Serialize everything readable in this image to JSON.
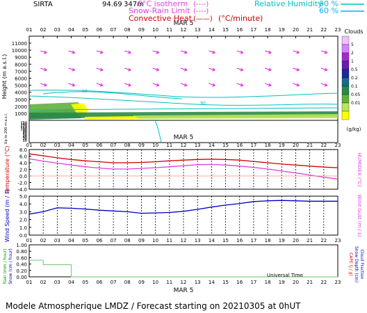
{
  "header": {
    "station": "SIRTA",
    "coords": "94.69",
    "alt": "347m",
    "legend": [
      {
        "label": "0°C isotherm",
        "sym": "(----)",
        "color": "#e040e0"
      },
      {
        "label": "Snow-Rain Limit",
        "sym": "(----)",
        "color": "#e040e0"
      },
      {
        "label": "Convective Heat.",
        "sym": "(——)",
        "color": "#d00000"
      },
      {
        "label": "(°C/minute)",
        "sym": "",
        "color": "#d00000"
      }
    ],
    "rh_label": "Relative Humidity",
    "rh_90": "90 %",
    "rh_60": "60 %",
    "rh_colors": {
      "rh90": "#00c0c0",
      "rh60": "#00b0ff"
    }
  },
  "hours": [
    "01",
    "02",
    "03",
    "04",
    "05",
    "06",
    "07",
    "08",
    "09",
    "10",
    "11",
    "12",
    "13",
    "14",
    "15",
    "16",
    "17",
    "18",
    "19",
    "20",
    "21",
    "22",
    "23"
  ],
  "date_label": "MAR  5",
  "footer": "Modele Atmospherique LMDZ / Forecast starting on 20210305 at 0hUT",
  "universal_time": "Universal Time",
  "chart_data": [
    {
      "type": "heatmap",
      "title": "",
      "ylabel": "Height  (m a.s.l.)",
      "ylabel2": "Up to 200 m a.s.l.",
      "yticks_upper": [
        "11000",
        "10000",
        "9000",
        "8000",
        "7000",
        "6000",
        "5000",
        "4000",
        "3000",
        "2000",
        "1000"
      ],
      "yticks_lower": [
        "150",
        "140",
        "130",
        "120",
        "110",
        "100",
        "90",
        "80",
        "70",
        "60",
        "50",
        "40",
        "30",
        "20",
        "10"
      ],
      "colorbar_title": "Clouds",
      "colorbar_unit": "(g/kg)",
      "colorbar_levels": [
        "0.01",
        "0.05",
        "0.1",
        "0.2",
        "0.5",
        "1",
        "2",
        "5"
      ],
      "colorbar_colors": [
        "#ffff00",
        "#bce35a",
        "#5fb040",
        "#2a8a48",
        "#1a6a8a",
        "#1a2aa0",
        "#6a1ab0",
        "#a02ad0",
        "#d880ff",
        "#f0c0ff"
      ],
      "contour_labels": [
        "60",
        "90"
      ]
    },
    {
      "type": "line",
      "ylabel": "Temperature (°C)",
      "ylabel2": "HUMIDEX (°C)",
      "yticks": [
        "8.0",
        "6.0",
        "4.0",
        "2.0",
        "0.0",
        "-2.0",
        "-4.0"
      ],
      "ylim": [
        -4,
        8
      ],
      "series": [
        {
          "name": "Temperature",
          "color": "#d00000",
          "values": [
            6.7,
            6.1,
            5.5,
            5.0,
            4.6,
            4.3,
            4.0,
            4.0,
            4.1,
            4.3,
            4.6,
            4.8,
            5.0,
            5.1,
            5.0,
            4.8,
            4.4,
            4.0,
            3.6,
            3.3,
            3.0,
            2.7,
            2.5
          ]
        },
        {
          "name": "Humidex",
          "color": "#e040e0",
          "values": [
            5.2,
            4.5,
            3.9,
            3.3,
            2.8,
            2.4,
            2.1,
            2.1,
            2.3,
            2.5,
            2.8,
            3.1,
            3.4,
            3.5,
            3.3,
            3.0,
            2.6,
            2.1,
            1.5,
            0.9,
            0.3,
            -0.4,
            -0.9
          ]
        }
      ]
    },
    {
      "type": "line",
      "ylabel": "Wind Speed (m / s)",
      "ylabel2": "Wind Gust (m / s)",
      "yticks": [
        "5.0",
        "4.0",
        "3.0",
        "2.0",
        "1.0",
        "0.0"
      ],
      "ylim": [
        0,
        5
      ],
      "series": [
        {
          "name": "Wind speed",
          "color": "#0000c0",
          "values": [
            2.7,
            3.0,
            3.5,
            3.45,
            3.35,
            3.2,
            3.1,
            3.0,
            2.8,
            2.85,
            2.9,
            3.05,
            3.3,
            3.6,
            3.85,
            4.05,
            4.3,
            4.4,
            4.45,
            4.4,
            4.35,
            4.35,
            4.35
          ]
        }
      ]
    },
    {
      "type": "line",
      "ylabel": "Rain (mm / hour)",
      "ylabel_b": "Snow (cm / hour)",
      "ylabel2": "CAPE (J / g)",
      "ylabel2_b": "Snow Depth (cm)",
      "ylabel2_c": "Cloud Fraction",
      "yticks": [
        "1.00",
        "0.80",
        "0.60",
        "0.40",
        "0.20",
        "0.00"
      ],
      "ylim": [
        0,
        1
      ],
      "series": [
        {
          "name": "Rain",
          "color": "#80d080",
          "values": [
            0.52,
            0.38,
            0.38,
            0.0,
            0,
            0,
            0,
            0,
            0,
            0,
            0,
            0,
            0,
            0,
            0,
            0,
            0,
            0,
            0,
            0,
            0,
            0,
            0
          ]
        }
      ]
    }
  ]
}
